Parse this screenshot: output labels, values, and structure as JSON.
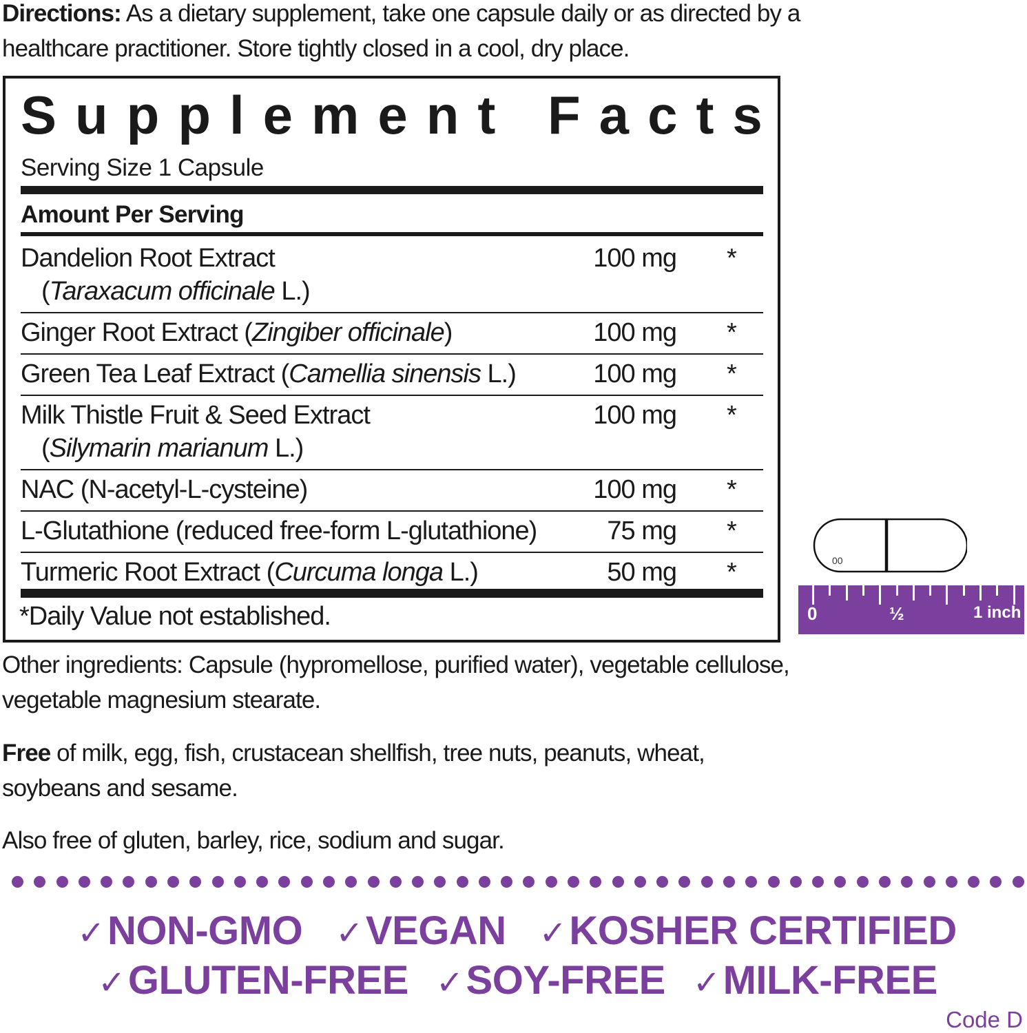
{
  "directions": {
    "label": "Directions:",
    "text": " As a dietary supplement, take one capsule daily or as directed by a healthcare practitioner. Store tightly closed in a cool, dry place."
  },
  "facts": {
    "title": "Supplement Facts",
    "serving_size": "Serving Size 1 Capsule",
    "amount_per_serving": "Amount Per Serving",
    "rows": [
      {
        "name": "Dandelion Root Extract",
        "open": "(",
        "latin": "Taraxacum officinale",
        "close": " L.)",
        "wrap": true,
        "amount": "100 mg",
        "dv": "*"
      },
      {
        "name": "Ginger Root Extract ",
        "open": "(",
        "latin": "Zingiber officinale",
        "close": ")",
        "wrap": false,
        "amount": "100 mg",
        "dv": "*"
      },
      {
        "name": "Green Tea Leaf Extract ",
        "open": "(",
        "latin": "Camellia sinensis",
        "close": " L.)",
        "wrap": false,
        "amount": "100 mg",
        "dv": "*"
      },
      {
        "name": "Milk Thistle Fruit & Seed Extract",
        "open": "(",
        "latin": "Silymarin marianum",
        "close": " L.)",
        "wrap": true,
        "amount": "100 mg",
        "dv": "*"
      },
      {
        "name": "NAC (N-acetyl-L-cysteine)",
        "open": "",
        "latin": "",
        "close": "",
        "wrap": false,
        "amount": "100 mg",
        "dv": "*"
      },
      {
        "name": "L-Glutathione (reduced free-form L-glutathione)",
        "open": "",
        "latin": "",
        "close": "",
        "wrap": false,
        "amount": "75 mg",
        "dv": "*"
      },
      {
        "name": "Turmeric Root Extract ",
        "open": "(",
        "latin": "Curcuma longa",
        "close": " L.)",
        "wrap": false,
        "amount": "50 mg",
        "dv": "*"
      }
    ],
    "footnote": "*Daily Value not established."
  },
  "other_ingredients": "Other ingredients: Capsule (hypromellose, purified water), vegetable cellulose, vegetable magnesium stearate.",
  "free": {
    "label": "Free",
    "text": " of milk, egg, fish, crustacean shellfish, tree nuts, peanuts, wheat, soybeans and sesame."
  },
  "also_free": "Also free of gluten, barley, rice, sodium and sugar.",
  "capsule": {
    "size_label": "00"
  },
  "ruler": {
    "zero": "0",
    "half": "½",
    "one": "1 inch"
  },
  "badges": {
    "check_icon": "✓",
    "line1": [
      "NON-GMO",
      "VEGAN",
      "KOSHER CERTIFIED"
    ],
    "line2": [
      "GLUTEN-FREE",
      "SOY-FREE",
      "MILK-FREE"
    ]
  },
  "code": "Code D",
  "colors": {
    "accent": "#7b3f9e",
    "text": "#1a1a1a"
  }
}
